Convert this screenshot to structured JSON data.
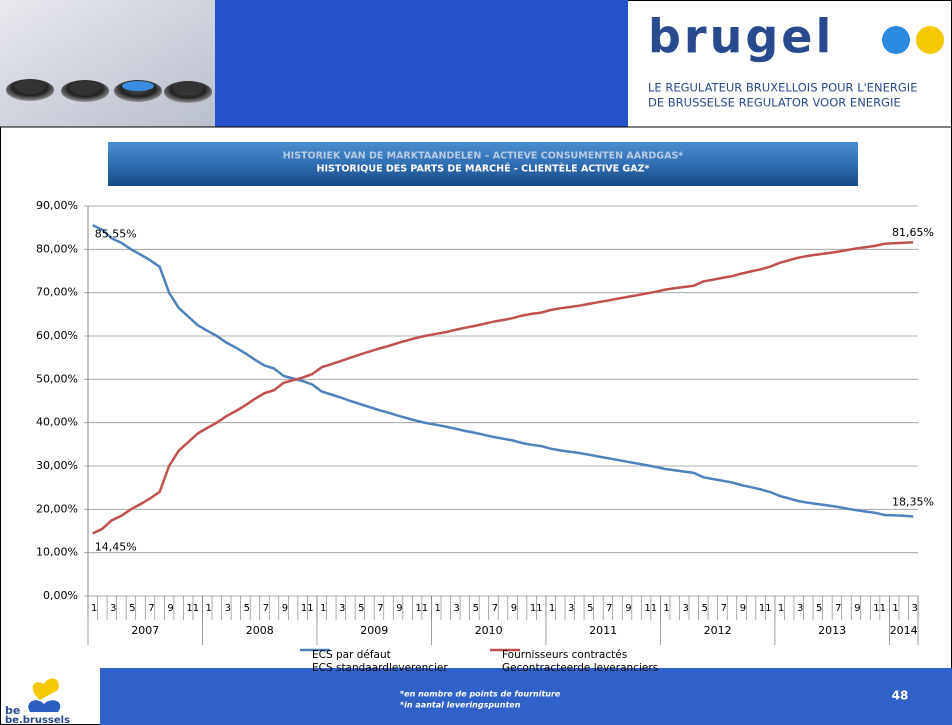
{
  "slide": {
    "logo": "brugel",
    "tagline_fr": "LE REGULATEUR BRUXELLOIS POUR L'ENERGIE",
    "tagline_nl": "DE BRUSSELSE REGULATOR VOOR ENERGIE",
    "footnote_fr": "*en nombre de points de fourniture",
    "footnote_nl": "*in aantal leveringspunten",
    "page_number": "48",
    "region_logo_top": "be",
    "region_logo_bottom": "be.brussels"
  },
  "chart_data": {
    "type": "line",
    "title": "HISTORIEK VAN DE MARKTAANDELEN – ACTIEVE CONSUMENTEN AARDGAS*",
    "subtitle": "HISTORIQUE DES PARTS DE MARCHÉ - CLIENTÈLE ACTIVE GAZ*",
    "categories": [
      "1",
      null,
      "3",
      null,
      "5",
      null,
      "7",
      null,
      "9",
      null,
      "11",
      null,
      "1",
      null,
      "3",
      null,
      "5",
      null,
      "7",
      null,
      "9",
      null,
      "11",
      null,
      "1",
      null,
      "3",
      null,
      "5",
      null,
      "7",
      null,
      "9",
      null,
      "11",
      null,
      "1",
      null,
      "3",
      null,
      "5",
      null,
      "7",
      null,
      "9",
      null,
      "11",
      null,
      "1",
      null,
      "3",
      null,
      "5",
      null,
      "7",
      null,
      "9",
      null,
      "11",
      null,
      "1",
      null,
      "3",
      null,
      "5",
      null,
      "7",
      null,
      "9",
      null,
      "11",
      null,
      "1",
      null,
      "3",
      null,
      "5",
      null,
      "7",
      null,
      "9",
      null,
      "11",
      null,
      "1",
      null,
      "3"
    ],
    "years": [
      "2007",
      "2008",
      "2009",
      "2010",
      "2011",
      "2012",
      "2013",
      "2014"
    ],
    "series": [
      {
        "name": "ECS par défaut",
        "name_alt": "ECS standaardleverencier",
        "color": "#4f81bd",
        "values": [
          85.55,
          84.5,
          82.5,
          81.5,
          80,
          78.8,
          77.5,
          76,
          70,
          66.5,
          64.5,
          62.5,
          61.2,
          60,
          58.5,
          57.3,
          56,
          54.5,
          53.2,
          52.5,
          50.8,
          50.2,
          49.6,
          48.8,
          47.2,
          46.5,
          45.8,
          45,
          44.3,
          43.6,
          42.9,
          42.3,
          41.6,
          41,
          40.4,
          39.9,
          39.5,
          39.1,
          38.6,
          38.1,
          37.7,
          37.2,
          36.7,
          36.3,
          35.9,
          35.3,
          34.9,
          34.6,
          34,
          33.6,
          33.3,
          33,
          32.6,
          32.2,
          31.8,
          31.4,
          31,
          30.6,
          30.2,
          29.8,
          29.3,
          29,
          28.7,
          28.4,
          27.4,
          27,
          26.6,
          26.2,
          25.6,
          25.1,
          24.6,
          24,
          23.1,
          22.5,
          21.9,
          21.5,
          21.2,
          20.9,
          20.6,
          20.2,
          19.8,
          19.5,
          19.2,
          18.7,
          18.6,
          18.5,
          18.35
        ],
        "value_labels": [
          "85,55%",
          null,
          null,
          null,
          null,
          null,
          null,
          null,
          null,
          null,
          null,
          null,
          null,
          null,
          null,
          null,
          null,
          null,
          null,
          null,
          null,
          null,
          null,
          null,
          null,
          null,
          null,
          null,
          null,
          null,
          null,
          null,
          null,
          null,
          null,
          null,
          null,
          null,
          null,
          null,
          null,
          null,
          null,
          null,
          null,
          null,
          null,
          null,
          null,
          null,
          null,
          null,
          null,
          null,
          null,
          null,
          null,
          null,
          null,
          null,
          null,
          null,
          null,
          null,
          null,
          null,
          null,
          null,
          null,
          null,
          null,
          null,
          null,
          null,
          null,
          null,
          null,
          null,
          null,
          null,
          null,
          null,
          null,
          null,
          null,
          null,
          "18,35%"
        ]
      },
      {
        "name": "Fournisseurs contractés",
        "name_alt": "Gecontracteerde leveranciers",
        "color": "#c0504d",
        "values": [
          14.45,
          15.5,
          17.5,
          18.5,
          20,
          21.2,
          22.5,
          24,
          30,
          33.5,
          35.5,
          37.5,
          38.8,
          40,
          41.5,
          42.7,
          44,
          45.5,
          46.8,
          47.5,
          49.2,
          49.8,
          50.4,
          51.2,
          52.8,
          53.5,
          54.2,
          55,
          55.7,
          56.4,
          57.1,
          57.7,
          58.4,
          59,
          59.6,
          60.1,
          60.5,
          60.9,
          61.4,
          61.9,
          62.3,
          62.8,
          63.3,
          63.7,
          64.1,
          64.7,
          65.1,
          65.4,
          66,
          66.4,
          66.7,
          67,
          67.4,
          67.8,
          68.2,
          68.6,
          69,
          69.4,
          69.8,
          70.2,
          70.7,
          71,
          71.3,
          71.6,
          72.6,
          73,
          73.4,
          73.8,
          74.4,
          74.9,
          75.4,
          76,
          76.9,
          77.5,
          78.1,
          78.5,
          78.8,
          79.1,
          79.4,
          79.8,
          80.2,
          80.5,
          80.8,
          81.3,
          81.4,
          81.5,
          81.65
        ],
        "value_labels": [
          "14,45%",
          null,
          null,
          null,
          null,
          null,
          null,
          null,
          null,
          null,
          null,
          null,
          null,
          null,
          null,
          null,
          null,
          null,
          null,
          null,
          null,
          null,
          null,
          null,
          null,
          null,
          null,
          null,
          null,
          null,
          null,
          null,
          null,
          null,
          null,
          null,
          null,
          null,
          null,
          null,
          null,
          null,
          null,
          null,
          null,
          null,
          null,
          null,
          null,
          null,
          null,
          null,
          null,
          null,
          null,
          null,
          null,
          null,
          null,
          null,
          null,
          null,
          null,
          null,
          null,
          null,
          null,
          null,
          null,
          null,
          null,
          null,
          null,
          null,
          null,
          null,
          null,
          null,
          null,
          null,
          null,
          null,
          null,
          null,
          null,
          null,
          "81,65%"
        ]
      }
    ],
    "ylim": [
      0,
      90
    ],
    "yticks": [
      {
        "value": 0,
        "label": "0,00%"
      },
      {
        "value": 10,
        "label": "10,00%"
      },
      {
        "value": 20,
        "label": "20,00%"
      },
      {
        "value": 30,
        "label": "30,00%"
      },
      {
        "value": 40,
        "label": "40,00%"
      },
      {
        "value": 50,
        "label": "50,00%"
      },
      {
        "value": 60,
        "label": "60,00%"
      },
      {
        "value": 70,
        "label": "70,00%"
      },
      {
        "value": 80,
        "label": "80,00%"
      },
      {
        "value": 90,
        "label": "90,00%"
      }
    ],
    "grid": true
  }
}
